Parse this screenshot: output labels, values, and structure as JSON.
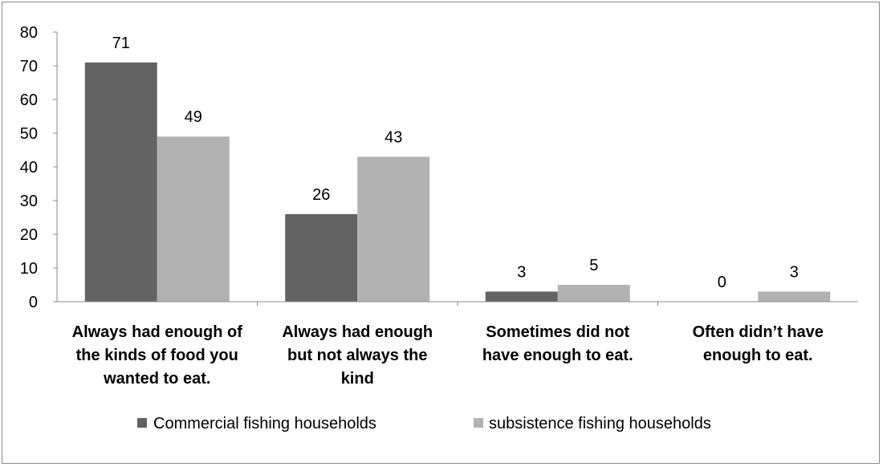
{
  "chart_data": {
    "type": "bar",
    "categories": [
      "Always had enough of the kinds of food you wanted to eat.",
      "Always had enough but not always the kind",
      "Sometimes did not have enough to eat.",
      "Often didn’t have enough to eat."
    ],
    "category_lines": [
      [
        "Always had enough of",
        "the kinds of food you",
        "wanted to eat."
      ],
      [
        "Always had enough",
        "but not always the",
        "kind"
      ],
      [
        "Sometimes did not",
        "have enough to eat."
      ],
      [
        "Often didn’t have",
        "enough to eat."
      ]
    ],
    "series": [
      {
        "name": "Commercial fishing households",
        "values": [
          71,
          26,
          3,
          0
        ],
        "color": "#636363"
      },
      {
        "name": "subsistence fishing households",
        "values": [
          49,
          43,
          5,
          3
        ],
        "color": "#b2b2b2"
      }
    ],
    "title": "",
    "xlabel": "",
    "ylabel": "",
    "ylim": [
      0,
      80
    ],
    "yticks": [
      "0",
      "10",
      "20",
      "30",
      "40",
      "50",
      "60",
      "70",
      "80"
    ],
    "grid": false,
    "legend_position": "bottom",
    "data_labels": true
  }
}
